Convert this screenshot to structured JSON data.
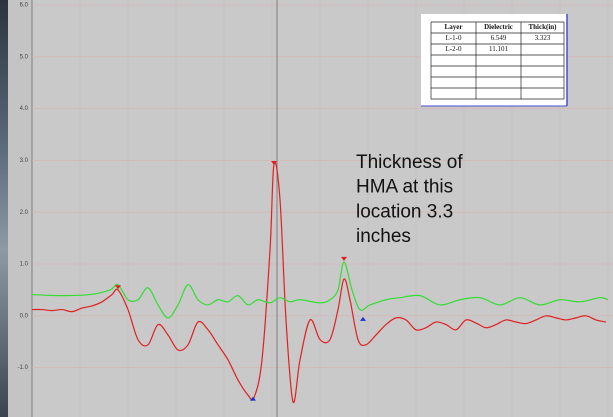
{
  "chart_data": {
    "type": "line",
    "ylim": [
      -2,
      6
    ],
    "yticks": [
      {
        "value": 6,
        "label": "6.0"
      },
      {
        "value": 5,
        "label": "5.0"
      },
      {
        "value": 4,
        "label": "4.0"
      },
      {
        "value": 3,
        "label": "3.0"
      },
      {
        "value": 2,
        "label": "2.0"
      },
      {
        "value": 1,
        "label": "1.0"
      },
      {
        "value": 0,
        "label": "0.0"
      },
      {
        "value": -1,
        "label": "-1.0"
      }
    ],
    "xlim": [
      0,
      581
    ],
    "grid": true,
    "cursor_x": 245,
    "series": [
      {
        "color": "#e02020",
        "x": [
          0,
          10,
          20,
          30,
          40,
          50,
          60,
          70,
          80,
          86,
          96,
          106,
          116,
          126,
          136,
          146,
          156,
          166,
          176,
          186,
          196,
          206,
          216,
          222,
          230,
          238,
          242,
          248,
          254,
          261,
          268,
          278,
          288,
          298,
          306,
          312,
          318,
          326,
          334,
          344,
          354,
          364,
          374,
          384,
          394,
          404,
          414,
          424,
          434,
          444,
          454,
          464,
          474,
          484,
          494,
          504,
          514,
          524,
          534,
          544,
          554,
          564,
          574
        ],
        "values": [
          0.12,
          0.12,
          0.1,
          0.12,
          0.08,
          0.15,
          0.19,
          0.27,
          0.41,
          0.5,
          0.12,
          -0.46,
          -0.56,
          -0.17,
          -0.37,
          -0.66,
          -0.56,
          -0.12,
          -0.27,
          -0.56,
          -0.85,
          -1.24,
          -1.53,
          -1.58,
          -0.85,
          1.27,
          2.93,
          2.24,
          -0.08,
          -1.66,
          -0.85,
          -0.08,
          -0.46,
          -0.46,
          0.12,
          0.71,
          0.31,
          -0.46,
          -0.56,
          -0.37,
          -0.17,
          -0.04,
          -0.08,
          -0.27,
          -0.23,
          -0.12,
          -0.17,
          -0.27,
          -0.08,
          -0.14,
          -0.23,
          -0.17,
          -0.08,
          -0.12,
          -0.15,
          -0.08,
          0,
          -0.04,
          -0.08,
          -0.04,
          0,
          -0.08,
          -0.12
        ]
      },
      {
        "color": "#33dd33",
        "x": [
          0,
          28,
          58,
          78,
          86,
          96,
          106,
          116,
          126,
          136,
          146,
          156,
          166,
          176,
          186,
          196,
          206,
          216,
          226,
          238,
          248,
          258,
          268,
          288,
          298,
          306,
          312,
          320,
          328,
          338,
          354,
          368,
          388,
          408,
          428,
          448,
          468,
          488,
          508,
          528,
          548,
          568,
          576
        ],
        "values": [
          0.41,
          0.39,
          0.41,
          0.5,
          0.6,
          0.31,
          0.31,
          0.54,
          0.21,
          -0.04,
          0.21,
          0.6,
          0.31,
          0.21,
          0.31,
          0.27,
          0.39,
          0.21,
          0.31,
          0.25,
          0.35,
          0.27,
          0.31,
          0.25,
          0.31,
          0.5,
          1.04,
          0.5,
          0.12,
          0.21,
          0.31,
          0.35,
          0.39,
          0.21,
          0.31,
          0.35,
          0.21,
          0.35,
          0.21,
          0.31,
          0.27,
          0.35,
          0.31
        ]
      }
    ],
    "markers": [
      {
        "x": 86,
        "y": 0.55,
        "color": "#e02020",
        "shape": "down"
      },
      {
        "x": 242,
        "y": 2.95,
        "color": "#e02020",
        "shape": "down"
      },
      {
        "x": 312,
        "y": 1.1,
        "color": "#e02020",
        "shape": "down"
      },
      {
        "x": 221,
        "y": -1.6,
        "color": "#1a2fd0",
        "shape": "up"
      },
      {
        "x": 331,
        "y": -0.06,
        "color": "#1a2fd0",
        "shape": "up"
      }
    ],
    "annotation": [
      "Thickness of",
      "HMA at this",
      "location 3.3",
      "inches"
    ],
    "table": {
      "header": [
        "Layer",
        "Dielectric",
        "Thick(in)"
      ],
      "rows": [
        [
          "L-1-0",
          "6.549",
          "3.323"
        ],
        [
          "L-2-0",
          "11.101"
        ]
      ]
    }
  }
}
